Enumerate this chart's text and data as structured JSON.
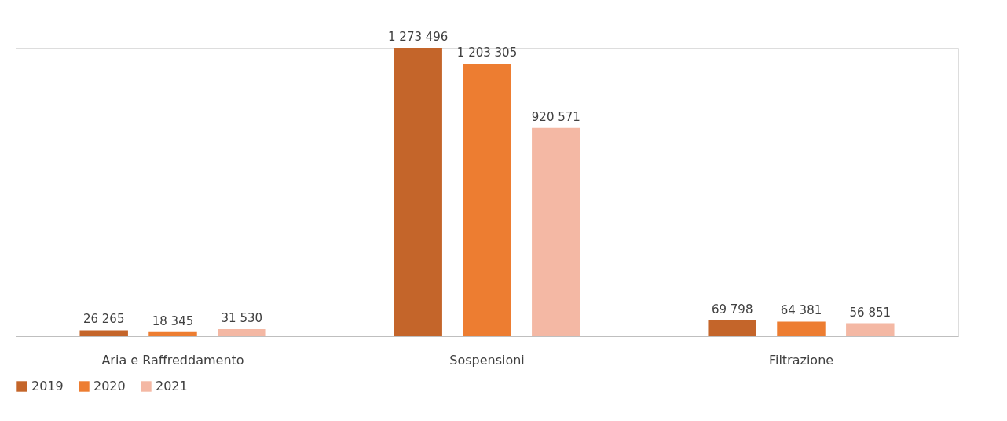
{
  "chart_data": {
    "type": "bar",
    "categories": [
      "Aria e Raffreddamento",
      "Sospensioni",
      "Filtrazione"
    ],
    "series": [
      {
        "name": "2019",
        "color": "#c4652a",
        "values": [
          26265,
          1273496,
          69798
        ]
      },
      {
        "name": "2020",
        "color": "#ed7d31",
        "values": [
          18345,
          1203305,
          64381
        ]
      },
      {
        "name": "2021",
        "color": "#f4b8a4",
        "values": [
          31530,
          920571,
          56851
        ]
      }
    ],
    "data_labels": true,
    "legend": "bottom",
    "grid": false
  }
}
